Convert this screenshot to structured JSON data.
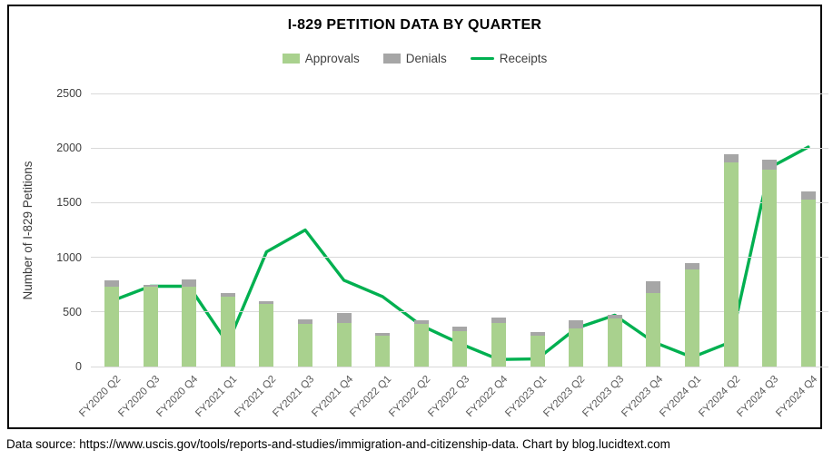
{
  "footer": {
    "text": "Data source: https://www.uscis.gov/tools/reports-and-studies/immigration-and-citizenship-data. Chart by blog.lucidtext.com"
  },
  "colors": {
    "approvals": "#A9D18E",
    "denials": "#A6A6A6",
    "receipts": "#00B050",
    "gridline": "#D9D9D9",
    "axis_tick_label": "#404040",
    "x_tick_label": "#595959",
    "title_text": "#000000",
    "frame_border": "#000000"
  },
  "chart_data": {
    "type": "bar",
    "stacked": true,
    "title": "I-829 PETITION DATA BY QUARTER",
    "xlabel": "",
    "ylabel": "Number of I-829 Petitions",
    "ylim": [
      0,
      2500
    ],
    "yticks": [
      0,
      500,
      1000,
      1500,
      2000,
      2500
    ],
    "grid": "horizontal",
    "legend_position": "top",
    "categories": [
      "FY2020 Q2",
      "FY2020 Q3",
      "FY2020 Q4",
      "FY2021 Q1",
      "FY2021 Q2",
      "FY2021 Q3",
      "FY2021 Q4",
      "FY2022 Q1",
      "FY2022 Q2",
      "FY2022 Q3",
      "FY2022 Q4",
      "FY2023 Q1",
      "FY2023 Q2",
      "FY2023 Q3",
      "FY2023 Q4",
      "FY2024 Q1",
      "FY2024 Q2",
      "FY2024 Q3",
      "FY2024 Q4"
    ],
    "series": [
      {
        "name": "Approvals",
        "kind": "bar-stack",
        "values": [
          730,
          735,
          730,
          640,
          570,
          390,
          395,
          280,
          390,
          325,
          400,
          285,
          350,
          440,
          670,
          885,
          1870,
          1800,
          1530
        ]
      },
      {
        "name": "Denials",
        "kind": "bar-stack",
        "values": [
          60,
          10,
          65,
          35,
          30,
          40,
          95,
          25,
          35,
          40,
          45,
          30,
          75,
          35,
          110,
          65,
          70,
          90,
          75
        ]
      },
      {
        "name": "Receipts",
        "kind": "line",
        "values": [
          600,
          735,
          735,
          210,
          1050,
          1250,
          790,
          640,
          375,
          210,
          65,
          70,
          350,
          470,
          225,
          85,
          225,
          1820,
          2010
        ]
      }
    ]
  }
}
